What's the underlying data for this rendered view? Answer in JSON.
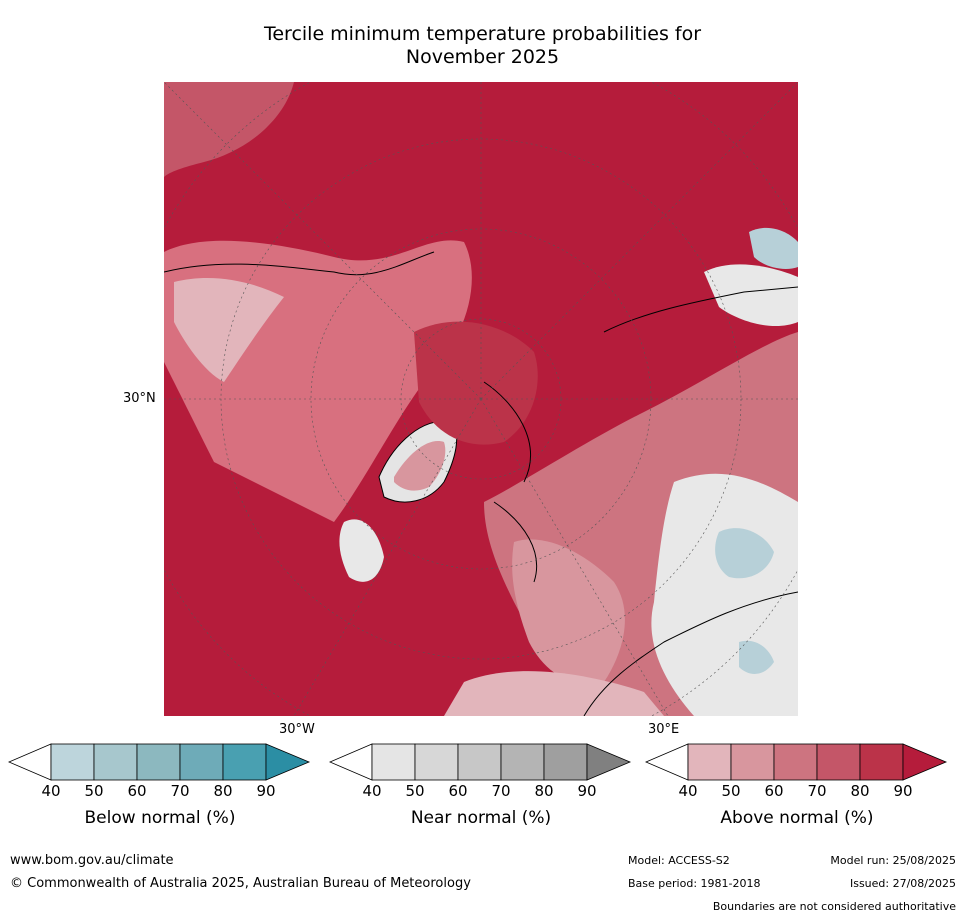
{
  "title": {
    "line1": "Tercile minimum temperature probabilities for",
    "line2": "November 2025"
  },
  "map": {
    "projection": "north-polar-stereographic",
    "labels": {
      "lat_30n": "30°N",
      "lon_30w": "30°W",
      "lon_30e": "30°E"
    },
    "colors": {
      "ocean": "#b51c3b",
      "land": "#d8707f",
      "near_normal": "#e8e8e8",
      "below_normal": "#b7d0d8"
    }
  },
  "colorbars": [
    {
      "id": "below",
      "label": "Below normal (%)",
      "ticks": [
        "40",
        "50",
        "60",
        "70",
        "80",
        "90"
      ],
      "colors": [
        "#ffffff",
        "#bdd5dc",
        "#a7c7cd",
        "#8cb8bf",
        "#6eabb8",
        "#49a0b1",
        "#2b8ea4"
      ]
    },
    {
      "id": "near",
      "label": "Near normal (%)",
      "ticks": [
        "40",
        "50",
        "60",
        "70",
        "80",
        "90"
      ],
      "colors": [
        "#ffffff",
        "#e5e5e5",
        "#d7d7d7",
        "#c7c7c7",
        "#b4b4b4",
        "#9f9f9f",
        "#808080"
      ]
    },
    {
      "id": "above",
      "label": "Above normal (%)",
      "ticks": [
        "40",
        "50",
        "60",
        "70",
        "80",
        "90"
      ],
      "colors": [
        "#ffffff",
        "#e2b5bb",
        "#d8969e",
        "#cd7480",
        "#c45668",
        "#bb3349",
        "#b51c3b"
      ]
    }
  ],
  "footer": {
    "url": "www.bom.gov.au/climate",
    "copyright": "© Commonwealth of Australia 2025, Australian Bureau of Meteorology",
    "model": "Model: ACCESS-S2",
    "base_period": "Base period: 1981-2018",
    "model_run": "Model run: 25/08/2025",
    "issued": "Issued: 27/08/2025",
    "disclaimer": "Boundaries are not considered authoritative"
  }
}
